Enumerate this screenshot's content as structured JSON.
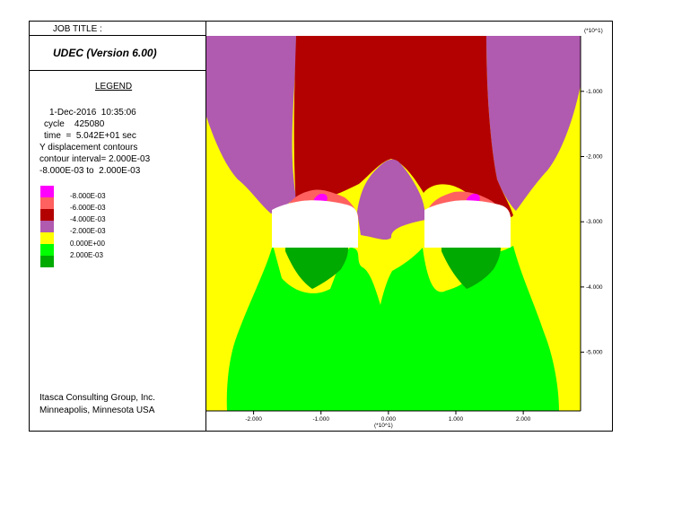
{
  "header": {
    "job_title": "JOB TITLE :",
    "app_title": "UDEC (Version 6.00)"
  },
  "legend": {
    "title": "LEGEND",
    "date_line": "1-Dec-2016  10:35:06",
    "cycle_line": "cycle    425080",
    "time_line": "time  =  5.042E+01 sec",
    "contour_type": "Y displacement contours",
    "interval_line": "contour interval= 2.000E-03",
    "range_line": "-8.000E-03 to  2.000E-03",
    "entries": [
      {
        "label": "-8.000E-03",
        "color": "#ff00ff"
      },
      {
        "label": "-6.000E-03",
        "color": "#ff6060"
      },
      {
        "label": "-4.000E-03",
        "color": "#b30000"
      },
      {
        "label": "-2.000E-03",
        "color": "#b05ab0"
      },
      {
        "label": "0.000E+00",
        "color": "#ffff00"
      },
      {
        "label": "2.000E-03",
        "color": "#00ff00"
      },
      {
        "label": "",
        "color": "#00aa00"
      }
    ]
  },
  "footer": {
    "company": "Itasca Consulting Group, Inc.",
    "location": "Minneapolis, Minnesota  USA"
  },
  "chart_data": {
    "type": "contour",
    "x_scale_label": "(*10^1)",
    "y_scale_label": "(*10^1)",
    "x_ticks": [
      "-2.000",
      "-1.000",
      "0.000",
      "1.000",
      "2.000"
    ],
    "x_tick_values": [
      -2,
      -1,
      0,
      1,
      2
    ],
    "y_ticks": [
      "-1.000",
      "-2.000",
      "-3.000",
      "-4.000",
      "-5.000"
    ],
    "y_tick_values": [
      -1,
      -2,
      -3,
      -4,
      -5
    ],
    "xlim": [
      -2.7,
      2.85
    ],
    "ylim": [
      -5.9,
      -0.15
    ],
    "colors": {
      "magenta": "#ff00ff",
      "pink": "#ff6060",
      "darkred": "#b30000",
      "purple": "#b05ab0",
      "yellow": "#ffff00",
      "green": "#00ff00",
      "darkgreen": "#00aa00"
    }
  }
}
